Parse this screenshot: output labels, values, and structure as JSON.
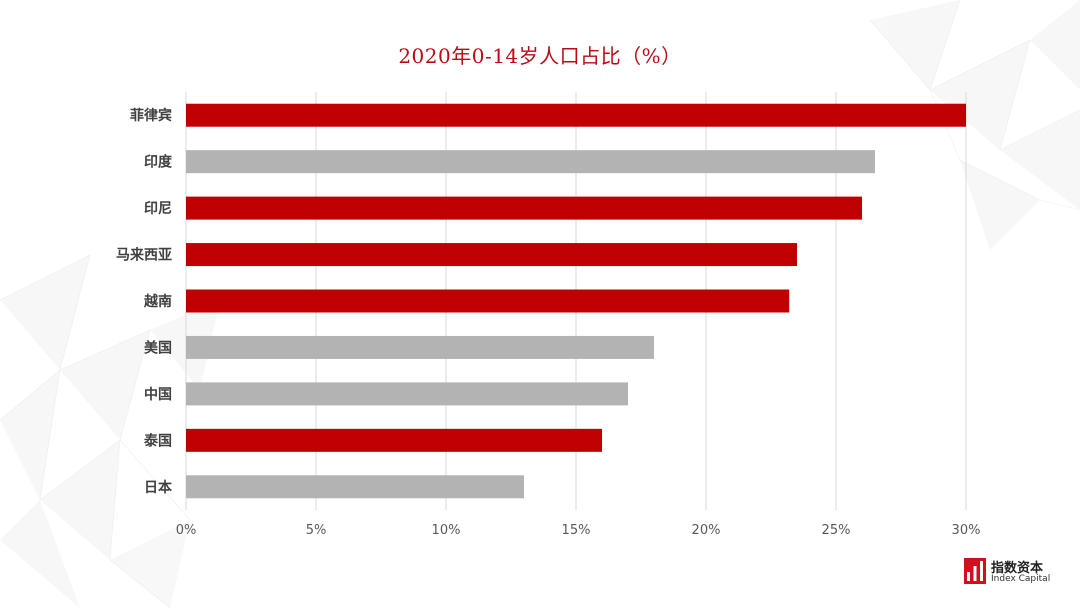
{
  "chart_data": {
    "type": "bar",
    "orientation": "horizontal",
    "title": "2020年0-14岁人口占比（%）",
    "xlabel": "",
    "ylabel": "",
    "categories": [
      "菲律宾",
      "印度",
      "印尼",
      "马来西亚",
      "越南",
      "美国",
      "中国",
      "泰国",
      "日本"
    ],
    "values": [
      30.0,
      26.5,
      26.0,
      23.5,
      23.2,
      18.0,
      17.0,
      16.0,
      13.0
    ],
    "bar_colors": [
      "#c00000",
      "#b3b3b3",
      "#c00000",
      "#c00000",
      "#c00000",
      "#b3b3b3",
      "#b3b3b3",
      "#c00000",
      "#b3b3b3"
    ],
    "xlim": [
      0,
      30
    ],
    "x_ticks": [
      0,
      5,
      10,
      15,
      20,
      25,
      30
    ],
    "x_tick_labels": [
      "0%",
      "5%",
      "10%",
      "15%",
      "20%",
      "25%",
      "30%"
    ],
    "gridlines": true,
    "legend": "none",
    "colors": {
      "highlight": "#c00000",
      "neutral": "#b3b3b3",
      "title": "#b90a16",
      "grid": "#d9d9d9"
    }
  },
  "logo": {
    "name_cn": "指数资本",
    "name_en": "Index Capital",
    "icon": "index-capital-logo-icon"
  }
}
